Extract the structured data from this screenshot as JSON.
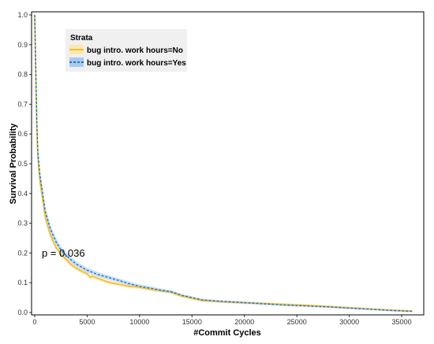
{
  "chart_data": {
    "type": "line",
    "title": "",
    "xlabel": "#Commit Cycles",
    "ylabel": "Survival Probability",
    "xlim": [
      0,
      36500
    ],
    "ylim": [
      0,
      1.0
    ],
    "x_ticks": [
      0,
      5000,
      10000,
      15000,
      20000,
      25000,
      30000,
      35000
    ],
    "y_ticks": [
      0.0,
      0.1,
      0.2,
      0.3,
      0.4,
      0.5,
      0.6,
      0.7,
      0.8,
      0.9,
      1.0
    ],
    "grid": false,
    "legend": {
      "title": "Strata",
      "position": "top-left",
      "entries": [
        "bug intro. work hours=No",
        "bug intro. work hours=Yes"
      ]
    },
    "annotation": "p = 0.036",
    "series": [
      {
        "name": "bug intro. work hours=No",
        "color": "#F2C12E",
        "style": "solid",
        "x": [
          0,
          100,
          200,
          300,
          500,
          800,
          1000,
          1500,
          2000,
          2500,
          3000,
          3500,
          4000,
          4500,
          5000,
          5300,
          5500,
          6000,
          7000,
          8000,
          9000,
          10000,
          11000,
          12000,
          13000,
          14000,
          15000,
          16000,
          18000,
          20000,
          22000,
          24000,
          26000,
          28000,
          30000,
          32000,
          34000,
          36000
        ],
        "y": [
          1.0,
          0.8,
          0.62,
          0.52,
          0.44,
          0.37,
          0.32,
          0.26,
          0.22,
          0.195,
          0.178,
          0.16,
          0.148,
          0.138,
          0.13,
          0.118,
          0.122,
          0.115,
          0.102,
          0.095,
          0.088,
          0.085,
          0.078,
          0.073,
          0.068,
          0.055,
          0.048,
          0.04,
          0.036,
          0.033,
          0.03,
          0.027,
          0.024,
          0.02,
          0.016,
          0.012,
          0.008,
          0.005
        ]
      },
      {
        "name": "bug intro. work hours=Yes",
        "color": "#1A73D9",
        "style": "dashed",
        "x": [
          0,
          100,
          200,
          300,
          500,
          800,
          1000,
          1500,
          2000,
          2500,
          3000,
          3500,
          4000,
          4500,
          5000,
          5500,
          6000,
          7000,
          8000,
          9000,
          10000,
          11000,
          12000,
          13000,
          14000,
          15000,
          16000,
          18000,
          20000,
          22000,
          24000,
          26000,
          28000,
          30000,
          32000,
          34000,
          36000
        ],
        "y": [
          1.0,
          0.82,
          0.64,
          0.54,
          0.46,
          0.39,
          0.34,
          0.28,
          0.24,
          0.21,
          0.192,
          0.176,
          0.162,
          0.152,
          0.142,
          0.135,
          0.128,
          0.118,
          0.108,
          0.097,
          0.088,
          0.082,
          0.075,
          0.07,
          0.058,
          0.05,
          0.042,
          0.037,
          0.033,
          0.029,
          0.025,
          0.022,
          0.019,
          0.015,
          0.011,
          0.007,
          0.004
        ]
      }
    ]
  }
}
